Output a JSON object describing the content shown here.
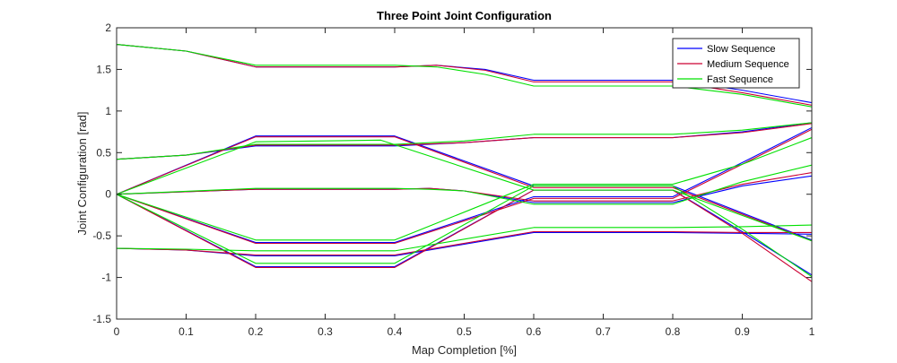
{
  "chart_data": {
    "type": "line",
    "title": "Three Point Joint Configuration",
    "xlabel": "Map Completion [%]",
    "ylabel": "Joint Configuration [rad]",
    "xlim": [
      0,
      1
    ],
    "ylim": [
      -1.5,
      2
    ],
    "xticks": [
      0,
      0.1,
      0.2,
      0.3,
      0.4,
      0.5,
      0.6,
      0.7,
      0.8,
      0.9,
      1
    ],
    "xtick_labels": [
      "0",
      "0.1",
      "0.2",
      "0.3",
      "0.4",
      "0.5",
      "0.6",
      "0.7",
      "0.8",
      "0.9",
      "1"
    ],
    "yticks": [
      -1.5,
      -1,
      -0.5,
      0,
      0.5,
      1,
      1.5,
      2
    ],
    "ytick_labels": [
      "-1.5",
      "-1",
      "-0.5",
      "0",
      "0.5",
      "1",
      "1.5",
      "2"
    ],
    "grid": false,
    "legend_position": "top-right",
    "series": [
      {
        "name": "Slow Sequence",
        "color": "#0000ff",
        "joints": [
          [
            [
              0,
              1.8
            ],
            [
              0.1,
              1.72
            ],
            [
              0.2,
              1.53
            ],
            [
              0.4,
              1.53
            ],
            [
              0.46,
              1.55
            ],
            [
              0.53,
              1.5
            ],
            [
              0.6,
              1.37
            ],
            [
              0.8,
              1.37
            ],
            [
              0.9,
              1.25
            ],
            [
              1,
              1.1
            ]
          ],
          [
            [
              0,
              0.42
            ],
            [
              0.1,
              0.47
            ],
            [
              0.2,
              0.58
            ],
            [
              0.4,
              0.58
            ],
            [
              0.5,
              0.62
            ],
            [
              0.6,
              0.68
            ],
            [
              0.8,
              0.68
            ],
            [
              0.9,
              0.75
            ],
            [
              1,
              0.86
            ]
          ],
          [
            [
              0,
              0
            ],
            [
              0.2,
              0.7
            ],
            [
              0.4,
              0.7
            ],
            [
              0.6,
              0.1
            ],
            [
              0.8,
              0.1
            ],
            [
              1,
              -0.55
            ]
          ],
          [
            [
              0,
              0
            ],
            [
              0.2,
              0.06
            ],
            [
              0.4,
              0.06
            ],
            [
              0.45,
              0.07
            ],
            [
              0.5,
              0.04
            ],
            [
              0.6,
              -0.1
            ],
            [
              0.8,
              -0.1
            ],
            [
              0.9,
              0.1
            ],
            [
              1,
              0.22
            ]
          ],
          [
            [
              0,
              0
            ],
            [
              0.2,
              -0.58
            ],
            [
              0.4,
              -0.58
            ],
            [
              0.6,
              -0.03
            ],
            [
              0.8,
              -0.03
            ],
            [
              0.9,
              0.38
            ],
            [
              1,
              0.8
            ]
          ],
          [
            [
              0,
              -0.65
            ],
            [
              0.1,
              -0.67
            ],
            [
              0.2,
              -0.74
            ],
            [
              0.4,
              -0.74
            ],
            [
              0.6,
              -0.46
            ],
            [
              0.8,
              -0.46
            ],
            [
              0.9,
              -0.47
            ],
            [
              1,
              -0.48
            ]
          ],
          [
            [
              0,
              0
            ],
            [
              0.2,
              -0.87
            ],
            [
              0.4,
              -0.87
            ],
            [
              0.6,
              0.05
            ],
            [
              0.8,
              0.05
            ],
            [
              0.9,
              -0.45
            ],
            [
              1,
              -0.97
            ]
          ]
        ]
      },
      {
        "name": "Medium Sequence",
        "color": "#cc0033",
        "joints": [
          [
            [
              0,
              1.8
            ],
            [
              0.1,
              1.72
            ],
            [
              0.2,
              1.53
            ],
            [
              0.4,
              1.53
            ],
            [
              0.46,
              1.55
            ],
            [
              0.53,
              1.49
            ],
            [
              0.6,
              1.35
            ],
            [
              0.8,
              1.35
            ],
            [
              0.9,
              1.22
            ],
            [
              1,
              1.07
            ]
          ],
          [
            [
              0,
              0.42
            ],
            [
              0.1,
              0.47
            ],
            [
              0.2,
              0.59
            ],
            [
              0.4,
              0.59
            ],
            [
              0.5,
              0.62
            ],
            [
              0.6,
              0.68
            ],
            [
              0.8,
              0.68
            ],
            [
              0.9,
              0.74
            ],
            [
              1,
              0.85
            ]
          ],
          [
            [
              0,
              0
            ],
            [
              0.2,
              0.69
            ],
            [
              0.4,
              0.69
            ],
            [
              0.6,
              0.08
            ],
            [
              0.8,
              0.08
            ],
            [
              1,
              -0.56
            ]
          ],
          [
            [
              0,
              0
            ],
            [
              0.2,
              0.06
            ],
            [
              0.4,
              0.06
            ],
            [
              0.45,
              0.07
            ],
            [
              0.5,
              0.04
            ],
            [
              0.6,
              -0.08
            ],
            [
              0.8,
              -0.08
            ],
            [
              0.9,
              0.12
            ],
            [
              1,
              0.26
            ]
          ],
          [
            [
              0,
              0
            ],
            [
              0.2,
              -0.59
            ],
            [
              0.4,
              -0.59
            ],
            [
              0.6,
              -0.05
            ],
            [
              0.8,
              -0.05
            ],
            [
              0.9,
              0.36
            ],
            [
              1,
              0.78
            ]
          ],
          [
            [
              0,
              -0.65
            ],
            [
              0.1,
              -0.67
            ],
            [
              0.2,
              -0.73
            ],
            [
              0.4,
              -0.73
            ],
            [
              0.6,
              -0.45
            ],
            [
              0.8,
              -0.45
            ],
            [
              0.9,
              -0.46
            ],
            [
              1,
              -0.46
            ]
          ],
          [
            [
              0,
              0
            ],
            [
              0.2,
              -0.88
            ],
            [
              0.4,
              -0.88
            ],
            [
              0.6,
              0.05
            ],
            [
              0.8,
              0.05
            ],
            [
              0.9,
              -0.47
            ],
            [
              1,
              -1.05
            ]
          ]
        ]
      },
      {
        "name": "Fast Sequence",
        "color": "#00e000",
        "joints": [
          [
            [
              0,
              1.8
            ],
            [
              0.1,
              1.72
            ],
            [
              0.2,
              1.55
            ],
            [
              0.4,
              1.55
            ],
            [
              0.46,
              1.53
            ],
            [
              0.53,
              1.44
            ],
            [
              0.6,
              1.3
            ],
            [
              0.8,
              1.3
            ],
            [
              0.9,
              1.2
            ],
            [
              1,
              1.05
            ]
          ],
          [
            [
              0,
              0.42
            ],
            [
              0.1,
              0.47
            ],
            [
              0.2,
              0.6
            ],
            [
              0.4,
              0.6
            ],
            [
              0.5,
              0.64
            ],
            [
              0.6,
              0.72
            ],
            [
              0.8,
              0.72
            ],
            [
              0.9,
              0.77
            ],
            [
              1,
              0.86
            ]
          ],
          [
            [
              0,
              0
            ],
            [
              0.2,
              0.63
            ],
            [
              0.38,
              0.65
            ],
            [
              0.6,
              0.05
            ],
            [
              0.8,
              0.05
            ],
            [
              1,
              -0.56
            ]
          ],
          [
            [
              0,
              0
            ],
            [
              0.2,
              0.07
            ],
            [
              0.4,
              0.07
            ],
            [
              0.45,
              0.06
            ],
            [
              0.5,
              0.04
            ],
            [
              0.6,
              -0.12
            ],
            [
              0.8,
              -0.12
            ],
            [
              0.9,
              0.15
            ],
            [
              1,
              0.35
            ]
          ],
          [
            [
              0,
              0
            ],
            [
              0.2,
              -0.55
            ],
            [
              0.4,
              -0.55
            ],
            [
              0.6,
              0.12
            ],
            [
              0.8,
              0.12
            ],
            [
              0.9,
              0.36
            ],
            [
              1,
              0.68
            ]
          ],
          [
            [
              0,
              -0.65
            ],
            [
              0.1,
              -0.66
            ],
            [
              0.2,
              -0.68
            ],
            [
              0.4,
              -0.68
            ],
            [
              0.6,
              -0.4
            ],
            [
              0.8,
              -0.4
            ],
            [
              0.9,
              -0.39
            ],
            [
              1,
              -0.37
            ]
          ],
          [
            [
              0,
              0
            ],
            [
              0.2,
              -0.83
            ],
            [
              0.4,
              -0.83
            ],
            [
              0.6,
              0.1
            ],
            [
              0.8,
              0.1
            ],
            [
              0.9,
              -0.42
            ],
            [
              1,
              -0.99
            ]
          ]
        ]
      }
    ]
  }
}
